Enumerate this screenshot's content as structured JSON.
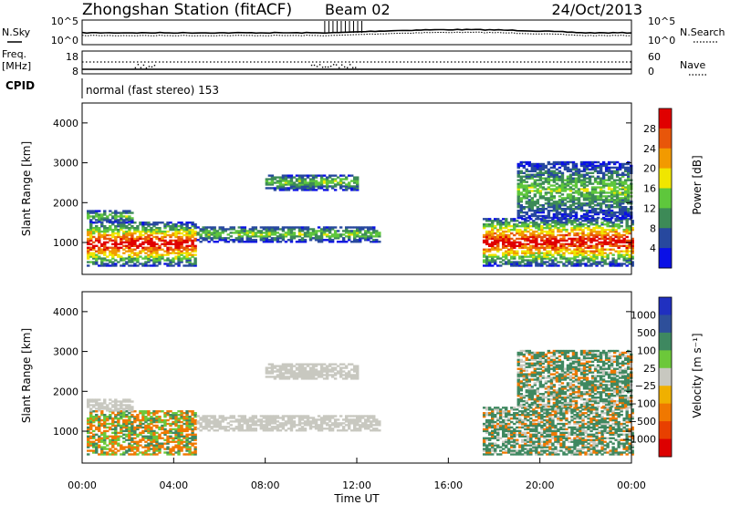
{
  "header": {
    "station": "Zhongshan Station (fitACF)",
    "beam": "Beam 02",
    "date": "24/Oct/2013"
  },
  "noise_panel": {
    "left_label": "N.Sky",
    "right_label": "N.Search",
    "left_ticks": [
      "10^5",
      "10^0"
    ],
    "right_ticks": [
      "10^5",
      "10^0"
    ]
  },
  "freq_panel": {
    "left_label_line1": "Freq.",
    "left_label_line2": "[MHz]",
    "right_label": "Nave",
    "left_ticks": [
      "18",
      "8"
    ],
    "right_ticks": [
      "60",
      "0"
    ]
  },
  "cpid": {
    "label": "CPID",
    "value": "normal (fast stereo) 153"
  },
  "colors": {
    "power_scale": [
      "#0a10e6",
      "#27489e",
      "#3d8a57",
      "#5ec73c",
      "#f0e600",
      "#f29a00",
      "#e8560a",
      "#e00000"
    ],
    "velocity_scale": [
      "#2030c0",
      "#2e4f9a",
      "#3e8860",
      "#6cc83a",
      "#c8c8c0",
      "#f0b000",
      "#f07800",
      "#e84000",
      "#dd0000"
    ]
  },
  "chart_data": [
    {
      "type": "heatmap",
      "panel": "power",
      "ylabel": "Slant Range [km]",
      "ylim": [
        200,
        4500
      ],
      "yticks": [
        "1000",
        "2000",
        "3000",
        "4000"
      ],
      "xlim": [
        "00:00",
        "24:00"
      ],
      "colorbar_label": "Power [dB]",
      "colorbar_ticks": [
        "4",
        "8",
        "12",
        "16",
        "20",
        "24",
        "28"
      ],
      "bands": [
        {
          "t0": 0.2,
          "t1": 5.0,
          "r0": 400,
          "r1": 1500,
          "level": "high"
        },
        {
          "t0": 0.2,
          "t1": 2.2,
          "r0": 1500,
          "r1": 1800,
          "level": "low"
        },
        {
          "t0": 5.0,
          "t1": 13.0,
          "r0": 1000,
          "r1": 1400,
          "level": "low"
        },
        {
          "t0": 8.0,
          "t1": 12.0,
          "r0": 2300,
          "r1": 2700,
          "level": "low"
        },
        {
          "t0": 17.5,
          "t1": 24.0,
          "r0": 400,
          "r1": 1600,
          "level": "high"
        },
        {
          "t0": 19.0,
          "t1": 24.0,
          "r0": 1600,
          "r1": 3000,
          "level": "low"
        }
      ]
    },
    {
      "type": "heatmap",
      "panel": "velocity",
      "ylabel": "Slant Range [km]",
      "ylim": [
        200,
        4500
      ],
      "yticks": [
        "1000",
        "2000",
        "3000",
        "4000"
      ],
      "xlim": [
        "00:00",
        "24:00"
      ],
      "xticks": [
        "00:00",
        "04:00",
        "08:00",
        "12:00",
        "16:00",
        "20:00",
        "00:00"
      ],
      "xlabel": "Time UT",
      "colorbar_label": "Velocity [m s⁻¹]",
      "colorbar_ticks": [
        "1000",
        "500",
        "100",
        "25",
        "−25",
        "−100",
        "−500",
        "−1000"
      ]
    }
  ]
}
